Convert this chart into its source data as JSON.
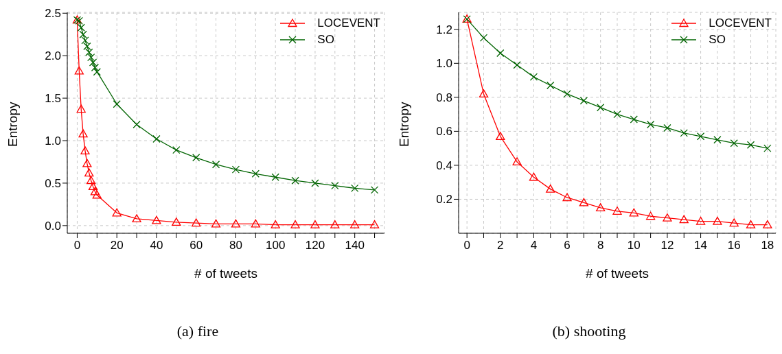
{
  "chart_data": [
    {
      "type": "line",
      "title": "(a) fire",
      "xlabel": "# of tweets",
      "ylabel": "Entropy",
      "x": [
        0,
        1,
        2,
        3,
        4,
        5,
        6,
        7,
        8,
        9,
        10,
        20,
        30,
        40,
        50,
        60,
        70,
        80,
        90,
        100,
        110,
        120,
        130,
        140,
        150
      ],
      "series": [
        {
          "name": "LOCEVENT",
          "color": "#ff0000",
          "marker": "triangle",
          "values": [
            2.42,
            1.82,
            1.37,
            1.08,
            0.88,
            0.73,
            0.62,
            0.53,
            0.46,
            0.4,
            0.36,
            0.15,
            0.08,
            0.06,
            0.04,
            0.03,
            0.02,
            0.02,
            0.02,
            0.01,
            0.01,
            0.01,
            0.01,
            0.01,
            0.01
          ]
        },
        {
          "name": "SO",
          "color": "#006400",
          "marker": "cross",
          "values": [
            2.42,
            2.41,
            2.33,
            2.25,
            2.18,
            2.11,
            2.04,
            1.98,
            1.92,
            1.86,
            1.81,
            1.43,
            1.19,
            1.02,
            0.89,
            0.8,
            0.72,
            0.66,
            0.61,
            0.57,
            0.53,
            0.5,
            0.47,
            0.44,
            0.42
          ]
        }
      ],
      "xlim": [
        -5,
        155
      ],
      "xticks": [
        0,
        {
          "value": 10,
          "label": null
        },
        20,
        {
          "value": 30,
          "label": null
        },
        40,
        {
          "value": 50,
          "label": null
        },
        60,
        {
          "value": 70,
          "label": null
        },
        80,
        {
          "value": 90,
          "label": null
        },
        100,
        {
          "value": 110,
          "label": null
        },
        120,
        {
          "value": 130,
          "label": null
        },
        140,
        {
          "value": 150,
          "label": null
        }
      ],
      "ylim": [
        -0.09,
        2.51
      ],
      "yticks": [
        {
          "value": 0,
          "label": "0.0"
        },
        0.5,
        {
          "value": 1,
          "label": "1.0"
        },
        1.5,
        {
          "value": 2,
          "label": "2.0"
        },
        2.5
      ],
      "grid": true,
      "legend": "top right"
    },
    {
      "type": "line",
      "title": "(b) shooting",
      "xlabel": "# of tweets",
      "ylabel": "Entropy",
      "x": [
        0,
        1,
        2,
        3,
        4,
        5,
        6,
        7,
        8,
        9,
        10,
        11,
        12,
        13,
        14,
        15,
        16,
        17,
        18
      ],
      "series": [
        {
          "name": "LOCEVENT",
          "color": "#ff0000",
          "marker": "triangle",
          "values": [
            1.26,
            0.82,
            0.57,
            0.42,
            0.33,
            0.26,
            0.21,
            0.18,
            0.15,
            0.13,
            0.12,
            0.1,
            0.09,
            0.08,
            0.07,
            0.07,
            0.06,
            0.05,
            0.05
          ]
        },
        {
          "name": "SO",
          "color": "#006400",
          "marker": "cross",
          "values": [
            1.26,
            1.15,
            1.06,
            0.99,
            0.92,
            0.87,
            0.82,
            0.78,
            0.74,
            0.7,
            0.67,
            0.64,
            0.62,
            0.59,
            0.57,
            0.55,
            0.53,
            0.52,
            0.5
          ]
        }
      ],
      "xlim": [
        -0.5,
        18.5
      ],
      "xticks": [
        0,
        {
          "value": 1,
          "label": null
        },
        2,
        {
          "value": 3,
          "label": null
        },
        4,
        {
          "value": 5,
          "label": null
        },
        6,
        {
          "value": 7,
          "label": null
        },
        8,
        {
          "value": 9,
          "label": null
        },
        10,
        {
          "value": 11,
          "label": null
        },
        12,
        {
          "value": 13,
          "label": null
        },
        14,
        {
          "value": 15,
          "label": null
        },
        16,
        {
          "value": 17,
          "label": null
        },
        18
      ],
      "ylim": [
        0,
        1.3
      ],
      "yticks": [
        0.2,
        0.4,
        0.6,
        0.8,
        {
          "value": 1,
          "label": "1.0"
        },
        1.2
      ],
      "grid": true,
      "legend": "top right"
    }
  ]
}
